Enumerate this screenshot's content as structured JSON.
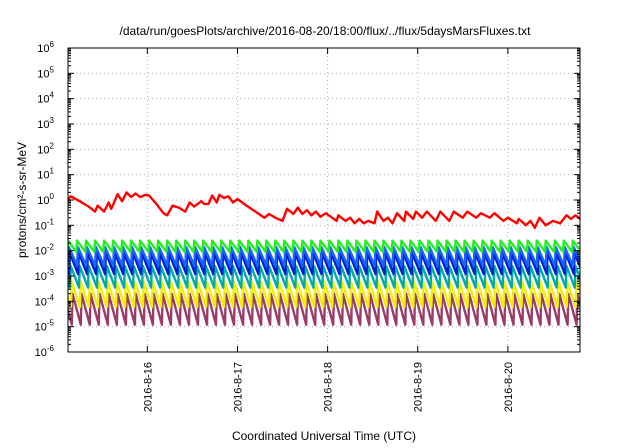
{
  "chart_data": {
    "type": "line",
    "title": "/data/run/goesPlots/archive/2016-08-20/18:00/flux/../flux/5daysMarsFluxes.txt",
    "xlabel": "Coordinated Universal Time (UTC)",
    "ylabel": "protons/cm²-s-sr-MeV",
    "y_scale": "log",
    "ylim_exponents": [
      -6,
      6
    ],
    "y_tick_labels": [
      {
        "base": "10",
        "exp": "-6"
      },
      {
        "base": "10",
        "exp": "-5"
      },
      {
        "base": "10",
        "exp": "-4"
      },
      {
        "base": "10",
        "exp": "-3"
      },
      {
        "base": "10",
        "exp": "-2"
      },
      {
        "base": "10",
        "exp": "-1"
      },
      {
        "base": "10",
        "exp": "0"
      },
      {
        "base": "10",
        "exp": "1"
      },
      {
        "base": "10",
        "exp": "2"
      },
      {
        "base": "10",
        "exp": "3"
      },
      {
        "base": "10",
        "exp": "4"
      },
      {
        "base": "10",
        "exp": "5"
      },
      {
        "base": "10",
        "exp": "6"
      }
    ],
    "xlim_days": [
      15.12,
      20.8
    ],
    "x_ticks": [
      {
        "day": 16,
        "label": "2016-8-16"
      },
      {
        "day": 17,
        "label": "2016-8-17"
      },
      {
        "day": 18,
        "label": "2016-8-18"
      },
      {
        "day": 19,
        "label": "2016-8-19"
      },
      {
        "day": 20,
        "label": "2016-8-20"
      }
    ],
    "grid": true,
    "legend": "none",
    "series": [
      {
        "color": "#ff0000",
        "points": [
          [
            15.12,
            1.0
          ],
          [
            15.15,
            1.4
          ],
          [
            15.25,
            0.9
          ],
          [
            15.35,
            0.55
          ],
          [
            15.42,
            0.35
          ],
          [
            15.45,
            0.6
          ],
          [
            15.52,
            0.35
          ],
          [
            15.57,
            0.8
          ],
          [
            15.6,
            0.45
          ],
          [
            15.67,
            1.7
          ],
          [
            15.72,
            0.9
          ],
          [
            15.77,
            2.0
          ],
          [
            15.82,
            1.3
          ],
          [
            15.87,
            1.8
          ],
          [
            15.92,
            1.3
          ],
          [
            15.98,
            1.6
          ],
          [
            16.02,
            1.5
          ],
          [
            16.1,
            0.7
          ],
          [
            16.18,
            0.3
          ],
          [
            16.22,
            0.25
          ],
          [
            16.28,
            0.6
          ],
          [
            16.35,
            0.5
          ],
          [
            16.42,
            0.35
          ],
          [
            16.47,
            0.8
          ],
          [
            16.52,
            0.55
          ],
          [
            16.6,
            0.9
          ],
          [
            16.63,
            0.7
          ],
          [
            16.68,
            0.7
          ],
          [
            16.72,
            1.5
          ],
          [
            16.77,
            0.8
          ],
          [
            16.8,
            1.6
          ],
          [
            16.85,
            1.2
          ],
          [
            16.9,
            1.4
          ],
          [
            16.95,
            0.8
          ],
          [
            17.0,
            1.1
          ],
          [
            17.1,
            0.6
          ],
          [
            17.2,
            0.35
          ],
          [
            17.3,
            0.2
          ],
          [
            17.35,
            0.28
          ],
          [
            17.42,
            0.2
          ],
          [
            17.5,
            0.15
          ],
          [
            17.55,
            0.45
          ],
          [
            17.62,
            0.28
          ],
          [
            17.67,
            0.5
          ],
          [
            17.72,
            0.28
          ],
          [
            17.77,
            0.4
          ],
          [
            17.82,
            0.25
          ],
          [
            17.87,
            0.35
          ],
          [
            17.92,
            0.22
          ],
          [
            17.98,
            0.3
          ],
          [
            18.05,
            0.2
          ],
          [
            18.1,
            0.15
          ],
          [
            18.12,
            0.25
          ],
          [
            18.2,
            0.15
          ],
          [
            18.25,
            0.2
          ],
          [
            18.3,
            0.12
          ],
          [
            18.35,
            0.18
          ],
          [
            18.4,
            0.12
          ],
          [
            18.45,
            0.15
          ],
          [
            18.52,
            0.12
          ],
          [
            18.55,
            0.35
          ],
          [
            18.62,
            0.15
          ],
          [
            18.67,
            0.2
          ],
          [
            18.72,
            0.12
          ],
          [
            18.77,
            0.3
          ],
          [
            18.85,
            0.15
          ],
          [
            18.87,
            0.35
          ],
          [
            18.95,
            0.18
          ],
          [
            18.98,
            0.35
          ],
          [
            19.05,
            0.2
          ],
          [
            19.1,
            0.35
          ],
          [
            19.2,
            0.15
          ],
          [
            19.25,
            0.35
          ],
          [
            19.35,
            0.15
          ],
          [
            19.4,
            0.35
          ],
          [
            19.5,
            0.2
          ],
          [
            19.55,
            0.35
          ],
          [
            19.65,
            0.2
          ],
          [
            19.7,
            0.3
          ],
          [
            19.8,
            0.2
          ],
          [
            19.85,
            0.3
          ],
          [
            19.95,
            0.15
          ],
          [
            20.0,
            0.2
          ],
          [
            20.1,
            0.12
          ],
          [
            20.12,
            0.18
          ],
          [
            20.2,
            0.1
          ],
          [
            20.25,
            0.15
          ],
          [
            20.3,
            0.08
          ],
          [
            20.35,
            0.2
          ],
          [
            20.42,
            0.1
          ],
          [
            20.5,
            0.15
          ],
          [
            20.58,
            0.12
          ],
          [
            20.65,
            0.25
          ],
          [
            20.7,
            0.18
          ],
          [
            20.75,
            0.25
          ],
          [
            20.8,
            0.18
          ]
        ]
      },
      {
        "color": "#22ee22",
        "peak": 0.025,
        "trough": 0.009,
        "period": 0.1,
        "phase": 0.0
      },
      {
        "color": "#1565ff",
        "peak": 0.014,
        "trough": 0.0025,
        "period": 0.1,
        "phase": 0.01
      },
      {
        "color": "#0022cc",
        "peak": 0.008,
        "trough": 0.0012,
        "period": 0.1,
        "phase": 0.02
      },
      {
        "color": "#00aaaa",
        "peak": 0.0025,
        "trough": 0.00035,
        "period": 0.1,
        "phase": 0.03
      },
      {
        "color": "#f2ee00",
        "peak": 0.0006,
        "trough": 6e-05,
        "period": 0.1,
        "phase": 0.04
      },
      {
        "color": "#9a3b6a",
        "peak": 0.0002,
        "trough": 1.2e-05,
        "period": 0.1,
        "phase": 0.05
      }
    ]
  }
}
